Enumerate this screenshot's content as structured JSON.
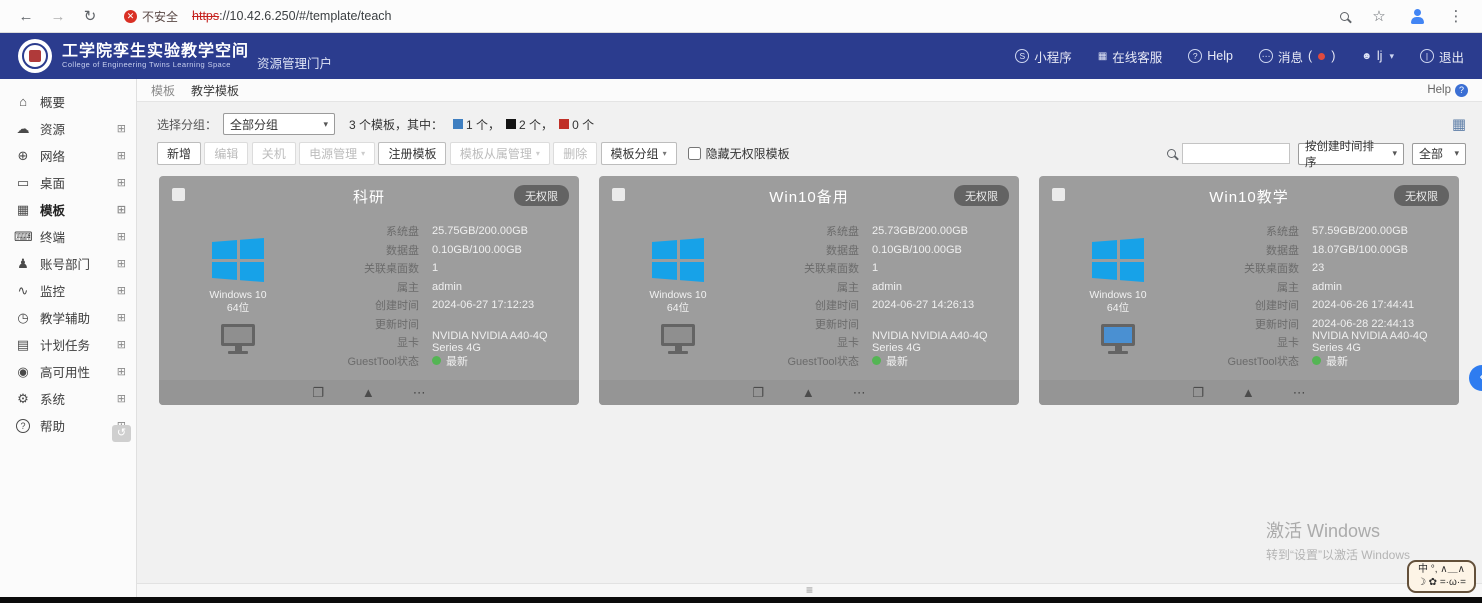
{
  "browser": {
    "security_label": "不安全",
    "url_scheme": "https",
    "url_rest": "://10.42.6.250/#/template/teach"
  },
  "header": {
    "title": "工学院孪生实验教学空间",
    "subtitle": "College of Engineering Twins Learning Space",
    "portal": "资源管理门户",
    "nav": [
      {
        "key": "miniprogram",
        "icon": "miniprogram-icon",
        "glyph": "S",
        "circle": true,
        "label": "小程序"
      },
      {
        "key": "online-service",
        "icon": "online-service-icon",
        "glyph": "▦",
        "circle": false,
        "label": "在线客服"
      },
      {
        "key": "help",
        "icon": "help-icon",
        "glyph": "?",
        "circle": true,
        "label": "Help"
      },
      {
        "key": "messages",
        "icon": "message-icon",
        "glyph": "⋯",
        "circle": true,
        "label": "消息",
        "extra": "dot",
        "paren_open": "(",
        "paren_close": ")"
      },
      {
        "key": "user",
        "icon": "user-icon",
        "glyph": "☻",
        "circle": false,
        "label": "lj",
        "extra": "caret"
      },
      {
        "key": "logout",
        "icon": "power-icon",
        "glyph": "|",
        "circle": true,
        "label": "退出"
      }
    ]
  },
  "sidebar": {
    "items": [
      {
        "key": "overview",
        "label": "概要",
        "icon": "home-icon",
        "glyph": "⌂",
        "expand": false
      },
      {
        "key": "resource",
        "label": "资源",
        "icon": "cloud-icon",
        "glyph": "☁",
        "expand": true
      },
      {
        "key": "network",
        "label": "网络",
        "icon": "globe-icon",
        "glyph": "⊕",
        "expand": true
      },
      {
        "key": "desktop",
        "label": "桌面",
        "icon": "desktop-icon",
        "glyph": "▭",
        "expand": true
      },
      {
        "key": "template",
        "label": "模板",
        "icon": "template-icon",
        "glyph": "▦",
        "expand": true,
        "active": true
      },
      {
        "key": "terminal",
        "label": "终端",
        "icon": "terminal-icon",
        "glyph": "⌨",
        "expand": true
      },
      {
        "key": "account-dept",
        "label": "账号部门",
        "icon": "user-icon",
        "glyph": "♟",
        "expand": true
      },
      {
        "key": "monitoring",
        "label": "监控",
        "icon": "chart-icon",
        "glyph": "∿",
        "expand": true
      },
      {
        "key": "teach-assist",
        "label": "教学辅助",
        "icon": "clock-icon",
        "glyph": "◷",
        "expand": true
      },
      {
        "key": "scheduled-tasks",
        "label": "计划任务",
        "icon": "calendar-icon",
        "glyph": "▤",
        "expand": true
      },
      {
        "key": "high-availability",
        "label": "高可用性",
        "icon": "shield-icon",
        "glyph": "◉",
        "expand": true
      },
      {
        "key": "system",
        "label": "系统",
        "icon": "gear-icon",
        "glyph": "⚙",
        "expand": true
      },
      {
        "key": "help",
        "label": "帮助",
        "icon": "question-icon",
        "glyph": "?",
        "expand": true,
        "circle": true
      }
    ]
  },
  "tabs": {
    "first": "模板",
    "second": "教学模板"
  },
  "help_top": "Help",
  "filter": {
    "group_label": "选择分组：",
    "group_value": "全部分组",
    "summary_prefix": "3 个模板，其中：",
    "legend": [
      {
        "color": "#3f7fc1",
        "text": "1 个，"
      },
      {
        "color": "#141414",
        "text": "2 个，"
      },
      {
        "color": "#c03028",
        "text": "0 个"
      }
    ]
  },
  "toolbar": {
    "buttons": [
      {
        "key": "add",
        "label": "新增",
        "enabled": true,
        "dropdown": false
      },
      {
        "key": "edit",
        "label": "编辑",
        "enabled": false,
        "dropdown": false
      },
      {
        "key": "shutdown",
        "label": "关机",
        "enabled": false,
        "dropdown": false
      },
      {
        "key": "power-mgmt",
        "label": "电源管理",
        "enabled": false,
        "dropdown": true
      },
      {
        "key": "register-template",
        "label": "注册模板",
        "enabled": true,
        "dropdown": false
      },
      {
        "key": "template-ownership",
        "label": "模板从属管理",
        "enabled": false,
        "dropdown": true
      },
      {
        "key": "delete",
        "label": "删除",
        "enabled": false,
        "dropdown": false
      },
      {
        "key": "template-group",
        "label": "模板分组",
        "enabled": true,
        "dropdown": true
      }
    ],
    "hide_checkbox_label": "隐藏无权限模板",
    "search_value": "",
    "sort_value": "按创建时间排序",
    "scope_value": "全部"
  },
  "card_field_labels": [
    "系统盘",
    "数据盘",
    "关联桌面数",
    "属主",
    "创建时间",
    "更新时间",
    "显卡",
    "GuestTool状态"
  ],
  "card_footer_icons": [
    {
      "name": "clone-icon",
      "glyph": "❐"
    },
    {
      "name": "eject-icon",
      "glyph": "▲"
    },
    {
      "name": "more-icon",
      "glyph": "⋯"
    }
  ],
  "cards": [
    {
      "title": "科研",
      "badge": "无权限",
      "os1": "Windows 10",
      "os2": "64位",
      "screen": "gray",
      "values": [
        "25.75GB/200.00GB",
        "0.10GB/100.00GB",
        "1",
        "admin",
        "2024-06-27 17:12:23",
        "",
        "NVIDIA NVIDIA A40-4Q Series 4G",
        "最新"
      ]
    },
    {
      "title": "Win10备用",
      "badge": "无权限",
      "os1": "Windows 10",
      "os2": "64位",
      "screen": "gray",
      "values": [
        "25.73GB/200.00GB",
        "0.10GB/100.00GB",
        "1",
        "admin",
        "2024-06-27 14:26:13",
        "",
        "NVIDIA NVIDIA A40-4Q Series 4G",
        "最新"
      ]
    },
    {
      "title": "Win10教学",
      "badge": "无权限",
      "os1": "Windows 10",
      "os2": "64位",
      "screen": "blue",
      "values": [
        "57.59GB/200.00GB",
        "18.07GB/100.00GB",
        "23",
        "admin",
        "2024-06-26 17:44:41",
        "2024-06-28 22:44:13",
        "NVIDIA NVIDIA A40-4Q Series 4G",
        "最新"
      ]
    }
  ],
  "watermark": {
    "line1": "激活 Windows",
    "line2": "转到“设置”以激活 Windows"
  },
  "ime": {
    "line1": "中 °, ∧＿∧",
    "line2": "☽ ✿ =·ω·="
  }
}
